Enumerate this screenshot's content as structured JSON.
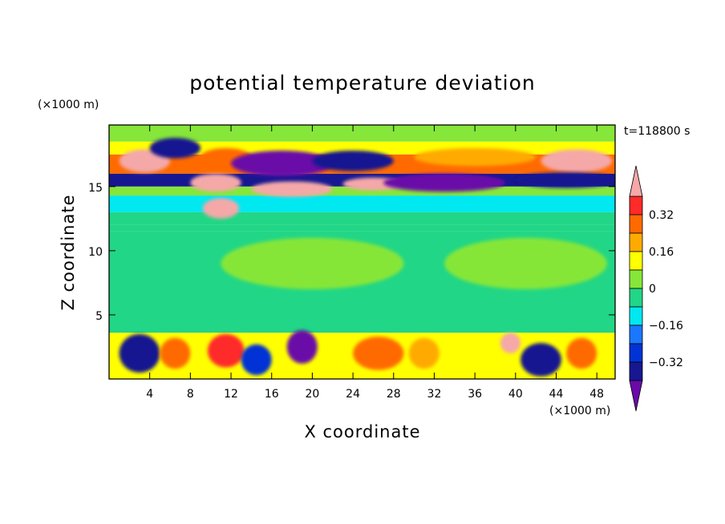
{
  "chart_data": {
    "type": "heatmap",
    "title": "potential temperature deviation",
    "xlabel": "X coordinate",
    "ylabel": "Z coordinate",
    "x_unit": "(×1000 m)",
    "y_unit": "(×1000 m)",
    "time_label": "t=118800 s",
    "xlim": [
      0,
      49.8
    ],
    "ylim": [
      0,
      19.8
    ],
    "x_ticks": [
      4,
      8,
      12,
      16,
      20,
      24,
      28,
      32,
      36,
      40,
      44,
      48
    ],
    "y_ticks": [
      5,
      10,
      15
    ],
    "colorbar": {
      "levels": [
        -0.48,
        -0.4,
        -0.32,
        -0.24,
        -0.16,
        -0.08,
        0,
        0.08,
        0.16,
        0.24,
        0.32,
        0.4,
        0.48
      ],
      "colors": [
        "#6a0aa8",
        "#171791",
        "#0033d6",
        "#1a78ff",
        "#00e8f0",
        "#21d686",
        "#86e639",
        "#ffff00",
        "#ffaa00",
        "#ff6a00",
        "#ff2a2a",
        "#f4a8a8"
      ],
      "labels": [
        "0.32",
        "0.16",
        "0",
        "−0.16",
        "−0.32"
      ],
      "label_values": [
        0.32,
        0.16,
        0,
        -0.16,
        -0.32
      ],
      "extend": "both"
    },
    "field_bands": [
      {
        "z_from": 18.5,
        "z_to": 19.8,
        "value": 0.0
      },
      {
        "z_from": 17.5,
        "z_to": 18.5,
        "value": 0.12
      },
      {
        "z_from": 16.0,
        "z_to": 17.5,
        "value": 0.25
      },
      {
        "z_from": 15.0,
        "z_to": 16.0,
        "value": -0.35
      },
      {
        "z_from": 14.3,
        "z_to": 15.0,
        "value": 0.05
      },
      {
        "z_from": 13.0,
        "z_to": 14.3,
        "value": -0.12
      },
      {
        "z_from": 12.0,
        "z_to": 13.0,
        "value": -0.05
      },
      {
        "z_from": 11.5,
        "z_to": 12.0,
        "value": -0.02
      },
      {
        "z_from": 3.6,
        "z_to": 11.5,
        "value": -0.03
      },
      {
        "z_from": 0.0,
        "z_to": 3.6,
        "value": 0.1
      }
    ],
    "features": [
      {
        "x": 3.5,
        "z": 17.0,
        "rx": 2.5,
        "rz": 0.9,
        "value": 0.5
      },
      {
        "x": 6.5,
        "z": 18.0,
        "rx": 2.5,
        "rz": 0.8,
        "value": -0.36
      },
      {
        "x": 10.5,
        "z": 15.3,
        "rx": 2.5,
        "rz": 0.7,
        "value": 0.5
      },
      {
        "x": 11.5,
        "z": 17.3,
        "rx": 2.5,
        "rz": 0.7,
        "value": 0.25
      },
      {
        "x": 17.0,
        "z": 16.8,
        "rx": 5.0,
        "rz": 1.0,
        "value": -0.45
      },
      {
        "x": 18.0,
        "z": 14.8,
        "rx": 4.0,
        "rz": 0.6,
        "value": 0.5
      },
      {
        "x": 11.0,
        "z": 13.3,
        "rx": 1.8,
        "rz": 0.8,
        "value": 0.5
      },
      {
        "x": 24.0,
        "z": 17.0,
        "rx": 4.0,
        "rz": 0.8,
        "value": -0.35
      },
      {
        "x": 26.0,
        "z": 15.2,
        "rx": 3.0,
        "rz": 0.5,
        "value": 0.5
      },
      {
        "x": 33.0,
        "z": 15.3,
        "rx": 6.0,
        "rz": 0.7,
        "value": -0.45
      },
      {
        "x": 36.0,
        "z": 17.3,
        "rx": 6.0,
        "rz": 0.7,
        "value": 0.2
      },
      {
        "x": 46.0,
        "z": 17.0,
        "rx": 3.5,
        "rz": 0.9,
        "value": 0.5
      },
      {
        "x": 45.0,
        "z": 15.5,
        "rx": 5.0,
        "rz": 0.6,
        "value": -0.36
      },
      {
        "x": 3.0,
        "z": 2.0,
        "rx": 2.0,
        "rz": 1.5,
        "value": -0.4
      },
      {
        "x": 6.5,
        "z": 2.0,
        "rx": 1.5,
        "rz": 1.2,
        "value": 0.3
      },
      {
        "x": 11.5,
        "z": 2.2,
        "rx": 1.8,
        "rz": 1.3,
        "value": 0.35
      },
      {
        "x": 14.5,
        "z": 1.5,
        "rx": 1.5,
        "rz": 1.2,
        "value": -0.3
      },
      {
        "x": 19.0,
        "z": 2.5,
        "rx": 1.5,
        "rz": 1.3,
        "value": -0.45
      },
      {
        "x": 26.5,
        "z": 2.0,
        "rx": 2.5,
        "rz": 1.3,
        "value": 0.3
      },
      {
        "x": 31.0,
        "z": 2.0,
        "rx": 1.5,
        "rz": 1.2,
        "value": 0.2
      },
      {
        "x": 39.5,
        "z": 2.8,
        "rx": 1.0,
        "rz": 0.8,
        "value": 0.5
      },
      {
        "x": 42.5,
        "z": 1.5,
        "rx": 2.0,
        "rz": 1.3,
        "value": -0.4
      },
      {
        "x": 46.5,
        "z": 2.0,
        "rx": 1.5,
        "rz": 1.2,
        "value": 0.3
      },
      {
        "x": 20.0,
        "z": 9.0,
        "rx": 9.0,
        "rz": 2.0,
        "value": 0.04
      },
      {
        "x": 41.0,
        "z": 9.0,
        "rx": 8.0,
        "rz": 2.0,
        "value": 0.04
      }
    ]
  }
}
